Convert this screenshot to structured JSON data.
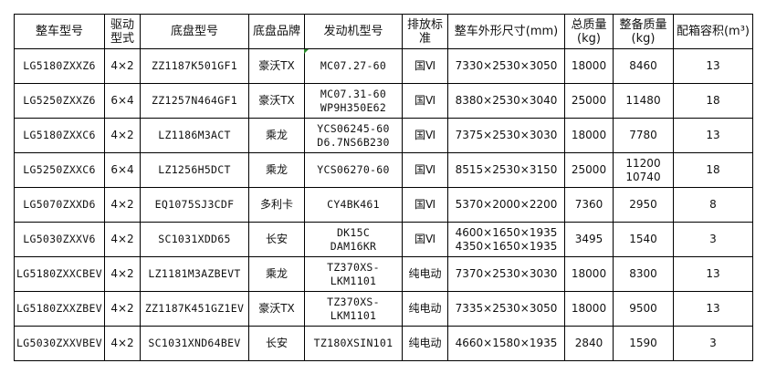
{
  "table": {
    "headers": [
      "整车型号",
      "驱动\n型式",
      "底盘型号",
      "底盘品牌",
      "发动机型号",
      "排放标\n准",
      "整车外形尺寸(mm)",
      "总质量\n(kg)",
      "整备质量\n(kg)",
      "配箱容积(m³)"
    ],
    "rows": [
      [
        "LG5180ZXXZ6",
        "4×2",
        "ZZ1187K501GF1",
        "豪沃TX",
        "MC07.27-60",
        "国Ⅵ",
        "7330×2530×3050",
        "18000",
        "8460",
        "13"
      ],
      [
        "LG5250ZXXZ6",
        "6×4",
        "ZZ1257N464GF1",
        "豪沃TX",
        "MC07.31-60\nWP9H350E62",
        "国Ⅵ",
        "8380×2530×3040",
        "25000",
        "11480",
        "18"
      ],
      [
        "LG5180ZXXC6",
        "4×2",
        "LZ1186M3ACT",
        "乘龙",
        "YCS06245-60\nD6.7NS6B230",
        "国Ⅵ",
        "7375×2530×3030",
        "18000",
        "7780",
        "13"
      ],
      [
        "LG5250ZXXC6",
        "6×4",
        "LZ1256H5DCT",
        "乘龙",
        "YCS06270-60",
        "国Ⅵ",
        "8515×2530×3150",
        "25000",
        "11200\n10740",
        "18"
      ],
      [
        "LG5070ZXXD6",
        "4×2",
        "EQ1075SJ3CDF",
        "多利卡",
        "CY4BK461",
        "国Ⅵ",
        "5370×2000×2200",
        "7360",
        "2950",
        "8"
      ],
      [
        "LG5030ZXXV6",
        "4×2",
        "SC1031XDD65",
        "长安",
        "DK15C\nDAM16KR",
        "国Ⅵ",
        "4600×1650×1935\n4350×1650×1935",
        "3495",
        "1540",
        "3"
      ],
      [
        "LG5180ZXXCBEV",
        "4×2",
        "LZ1181M3AZBEVT",
        "乘龙",
        "TZ370XS-\nLKM1101",
        "纯电动",
        "7370×2530×3030",
        "18000",
        "8300",
        "13"
      ],
      [
        "LG5180ZXXZBEV",
        "4×2",
        "ZZ1187K451GZ1EV",
        "豪沃TX",
        "TZ370XS-\nLKM1101",
        "纯电动",
        "7335×2530×3050",
        "18000",
        "9500",
        "13"
      ],
      [
        "LG5030ZXXVBEV",
        "4×2",
        "SC1031XND64BEV",
        "长安",
        "TZ180XSIN101",
        "纯电动",
        "4660×1580×1935",
        "2840",
        "1590",
        "3"
      ]
    ]
  }
}
